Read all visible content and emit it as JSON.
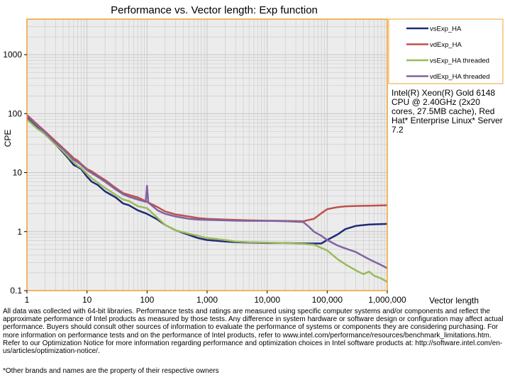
{
  "chart_data": {
    "type": "line",
    "title": "Performance vs. Vector length: Exp function",
    "xlabel": "Vector length",
    "ylabel": "CPE",
    "xscale": "log",
    "yscale": "log",
    "xlim": [
      1,
      1000000
    ],
    "ylim": [
      0.1,
      4000
    ],
    "grid": true,
    "legend_position": "right",
    "x_tick_labels": [
      "1",
      "10",
      "100",
      "1,000",
      "10,000",
      "100,000",
      "1,000,000"
    ],
    "y_tick_labels": [
      "0.1",
      "1",
      "10",
      "100",
      "1000"
    ],
    "series": [
      {
        "name": "vsExp_HA",
        "color": "#1f2a7a",
        "x": [
          1,
          1.5,
          2,
          3,
          4,
          5,
          6,
          7,
          8,
          10,
          12,
          15,
          20,
          30,
          40,
          50,
          70,
          100,
          150,
          200,
          300,
          500,
          700,
          1000,
          2000,
          3000,
          5000,
          10000,
          20000,
          40000,
          60000,
          80000,
          100000,
          150000,
          200000,
          300000,
          500000,
          1000000
        ],
        "y": [
          85,
          58,
          45,
          30,
          22,
          17,
          13.5,
          12.5,
          11.5,
          8.5,
          7,
          6.2,
          4.8,
          3.8,
          3.0,
          2.8,
          2.3,
          2.0,
          1.6,
          1.3,
          1.05,
          0.88,
          0.78,
          0.72,
          0.68,
          0.66,
          0.65,
          0.64,
          0.64,
          0.63,
          0.63,
          0.63,
          0.72,
          0.9,
          1.1,
          1.25,
          1.32,
          1.35
        ]
      },
      {
        "name": "vdExp_HA",
        "color": "#c0504d",
        "x": [
          1,
          1.5,
          2,
          3,
          4,
          5,
          6,
          7,
          8,
          10,
          12,
          15,
          20,
          30,
          40,
          50,
          70,
          100,
          150,
          200,
          300,
          500,
          700,
          1000,
          2000,
          3000,
          5000,
          10000,
          20000,
          40000,
          60000,
          80000,
          100000,
          150000,
          200000,
          300000,
          500000,
          1000000
        ],
        "y": [
          95,
          65,
          50,
          34,
          26,
          21,
          17.5,
          16,
          14,
          11.5,
          10.5,
          9,
          7.5,
          5.5,
          4.5,
          4.2,
          3.8,
          3.2,
          2.6,
          2.2,
          1.95,
          1.8,
          1.7,
          1.65,
          1.6,
          1.58,
          1.55,
          1.53,
          1.52,
          1.5,
          1.65,
          2.05,
          2.4,
          2.6,
          2.68,
          2.72,
          2.75,
          2.8
        ]
      },
      {
        "name": "vsExp_HA threaded",
        "color": "#9bbb59",
        "x": [
          1,
          1.5,
          2,
          3,
          4,
          5,
          6,
          7,
          8,
          10,
          12,
          15,
          20,
          30,
          40,
          50,
          70,
          100,
          150,
          200,
          300,
          500,
          700,
          1000,
          2000,
          3000,
          5000,
          10000,
          20000,
          40000,
          60000,
          100000,
          150000,
          200000,
          300000,
          400000,
          500000,
          600000,
          800000,
          1000000
        ],
        "y": [
          80,
          55,
          45,
          30,
          23,
          18,
          15,
          13,
          12,
          9.5,
          8,
          6.8,
          5.5,
          4.2,
          3.5,
          3.3,
          2.7,
          2.5,
          1.7,
          1.3,
          1.05,
          0.92,
          0.85,
          0.78,
          0.72,
          0.68,
          0.66,
          0.65,
          0.64,
          0.62,
          0.6,
          0.48,
          0.34,
          0.28,
          0.22,
          0.19,
          0.21,
          0.18,
          0.16,
          0.14
        ]
      },
      {
        "name": "vdExp_HA threaded",
        "color": "#8064a2",
        "x": [
          1,
          1.5,
          2,
          3,
          4,
          5,
          6,
          7,
          8,
          10,
          12,
          15,
          20,
          30,
          40,
          50,
          70,
          95,
          100,
          105,
          150,
          200,
          300,
          500,
          700,
          1000,
          2000,
          3000,
          5000,
          10000,
          20000,
          40000,
          50000,
          60000,
          80000,
          100000,
          150000,
          200000,
          300000,
          500000,
          800000,
          1000000
        ],
        "y": [
          90,
          62,
          48,
          32,
          25,
          20,
          16.5,
          15,
          13.5,
          11,
          9.8,
          8.5,
          7,
          5.2,
          4.3,
          3.9,
          3.5,
          3.2,
          6,
          3.1,
          2.3,
          2.0,
          1.8,
          1.65,
          1.6,
          1.58,
          1.55,
          1.53,
          1.52,
          1.52,
          1.5,
          1.45,
          1.2,
          1.0,
          0.85,
          0.72,
          0.58,
          0.52,
          0.45,
          0.34,
          0.27,
          0.24
        ]
      }
    ]
  },
  "cpu_note": "Intel(R) Xeon(R) Gold 6148 CPU @ 2.40GHz (2x20 cores, 27.5MB cache), Red Hat* Enterprise Linux* Server 7.2",
  "disclaimer": "All data was collected with 64-bit libraries. Performance tests and ratings are measured using specific computer systems and/or components and reflect the approximate performance of Intel products as measured by those tests. Any difference in system hardware or software design or configuration may affect actual performance. Buyers should consult other sources of information to evaluate the performance of systems or components they are considering purchasing. For more information on performance tests and on the performance of Intel products, refer to www.intel.com/performance/resources/benchmark_limitations.htm. Refer to our Optimization Notice for more information regarding performance and optimization choices in Intel software products at: http://software.intel.com/en-us/articles/optimization-notice/.",
  "footnote": "*Other brands and names are the property of their respective owners",
  "colors": {
    "plot_border": "#f0a030",
    "grid": "#c8c8c8",
    "plot_background": "#ececec"
  }
}
